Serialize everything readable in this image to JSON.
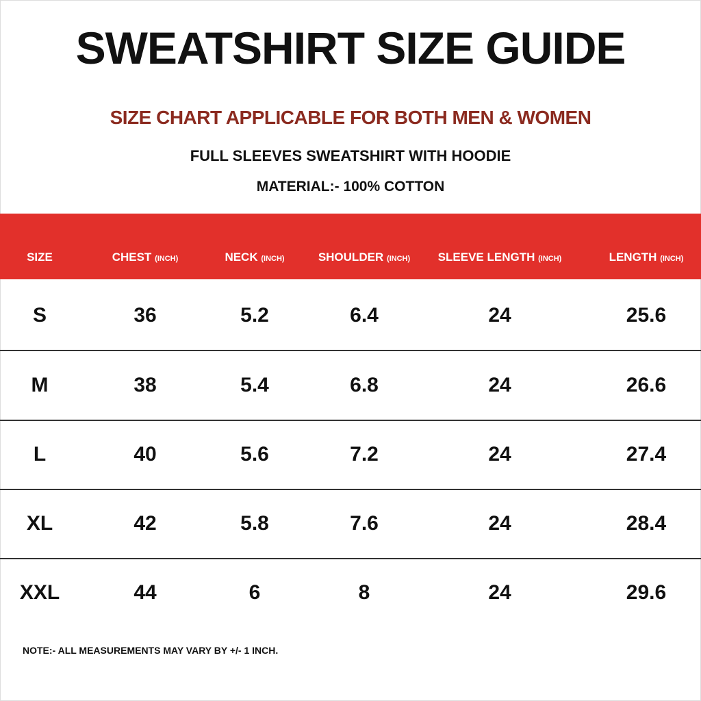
{
  "title": "SWEATSHIRT SIZE GUIDE",
  "subtitle": "SIZE CHART APPLICABLE FOR BOTH MEN & WOMEN",
  "product": "FULL SLEEVES SWEATSHIRT WITH HOODIE",
  "material": "MATERIAL:- 100% COTTON",
  "colors": {
    "header_bg": "#e2302b",
    "subtitle": "#8b2a1f"
  },
  "table": {
    "headers": [
      {
        "label": "SIZE",
        "unit": ""
      },
      {
        "label": "CHEST",
        "unit": "(INCH)"
      },
      {
        "label": "NECK",
        "unit": "(INCH)"
      },
      {
        "label": "SHOULDER",
        "unit": "(INCH)"
      },
      {
        "label": "SLEEVE LENGTH",
        "unit": "(INCH)"
      },
      {
        "label": "LENGTH",
        "unit": "(INCH)"
      }
    ],
    "rows": [
      [
        "S",
        "36",
        "5.2",
        "6.4",
        "24",
        "25.6"
      ],
      [
        "M",
        "38",
        "5.4",
        "6.8",
        "24",
        "26.6"
      ],
      [
        "L",
        "40",
        "5.6",
        "7.2",
        "24",
        "27.4"
      ],
      [
        "XL",
        "42",
        "5.8",
        "7.6",
        "24",
        "28.4"
      ],
      [
        "XXL",
        "44",
        "6",
        "8",
        "24",
        "29.6"
      ]
    ]
  },
  "note": "NOTE:- ALL MEASUREMENTS MAY VARY BY +/- 1 INCH."
}
